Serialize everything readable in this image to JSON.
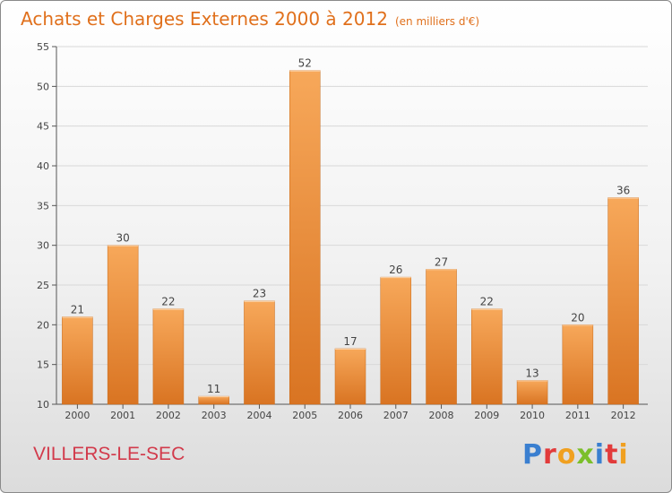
{
  "header": {
    "title": "Achats et Charges Externes 2000 à 2012",
    "unit": "(en milliers d'€)"
  },
  "footer": {
    "place": "VILLERS-LE-SEC",
    "brand": "Proxiti",
    "brand_colors": [
      "#3a7fd0",
      "#e23b3b",
      "#f0a020",
      "#7bbf2a",
      "#3a7fd0",
      "#e23b3b",
      "#f0a020"
    ]
  },
  "colors": {
    "bar_light": "#f7a85a",
    "bar_dark": "#d97422",
    "title": "#e0701c",
    "grid": "#d8d8d8"
  },
  "chart_data": {
    "type": "bar",
    "title": "Achats et Charges Externes 2000 à 2012",
    "xlabel": "",
    "ylabel": "",
    "categories": [
      "2000",
      "2001",
      "2002",
      "2003",
      "2004",
      "2005",
      "2006",
      "2007",
      "2008",
      "2009",
      "2010",
      "2011",
      "2012"
    ],
    "values": [
      21,
      30,
      22,
      11,
      23,
      52,
      17,
      26,
      27,
      22,
      13,
      20,
      36
    ],
    "ylim": [
      10,
      55
    ],
    "yticks": [
      10,
      15,
      20,
      25,
      30,
      35,
      40,
      45,
      50,
      55
    ],
    "grid": true,
    "data_labels": true
  }
}
